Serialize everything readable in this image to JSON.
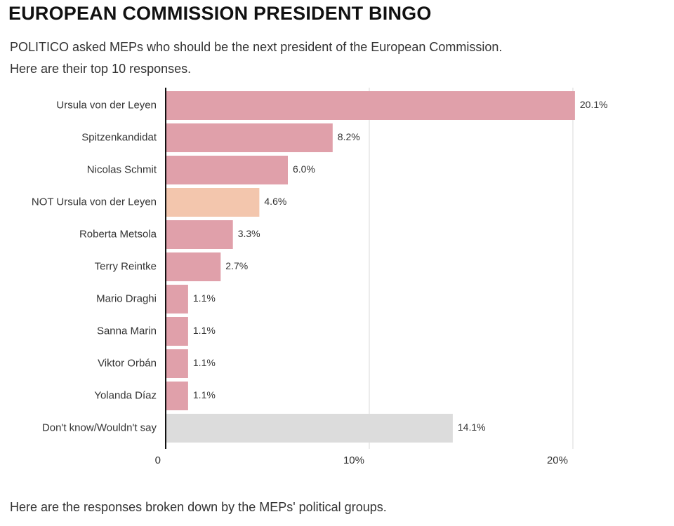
{
  "header": {
    "title": "EUROPEAN COMMISSION PRESIDENT BINGO",
    "subtitle_line1": "POLITICO asked MEPs who should be the next president of the European Commission.",
    "subtitle_line2": "Here are their top 10 responses."
  },
  "footer": {
    "text": "Here are the responses broken down by the MEPs' political groups."
  },
  "colors": {
    "pink": "#e0a0aa",
    "peach": "#f3c6ad",
    "grey": "#dcdcdc",
    "gridline": "#d9d9d9",
    "axis": "#111111"
  },
  "chart_data": {
    "type": "bar",
    "orientation": "horizontal",
    "title": "EUROPEAN COMMISSION PRESIDENT BINGO",
    "xlabel": "",
    "ylabel": "",
    "xlim": [
      0,
      20.5
    ],
    "grid": true,
    "xticks": [
      {
        "value": 0,
        "label": "0"
      },
      {
        "value": 10,
        "label": "10%"
      },
      {
        "value": 20,
        "label": "20%"
      }
    ],
    "categories": [
      "Ursula von der Leyen",
      "Spitzenkandidat",
      "Nicolas Schmit",
      "NOT Ursula von der Leyen",
      "Roberta Metsola",
      "Terry Reintke",
      "Mario Draghi",
      "Sanna Marin",
      "Viktor Orbán",
      "Yolanda Díaz",
      "Don't know/Wouldn't say"
    ],
    "values": [
      20.1,
      8.2,
      6.0,
      4.6,
      3.3,
      2.7,
      1.1,
      1.1,
      1.1,
      1.1,
      14.1
    ],
    "value_labels": [
      "20.1%",
      "8.2%",
      "6.0%",
      "4.6%",
      "3.3%",
      "2.7%",
      "1.1%",
      "1.1%",
      "1.1%",
      "1.1%",
      "14.1%"
    ],
    "bar_colors": [
      "pink",
      "pink",
      "pink",
      "peach",
      "pink",
      "pink",
      "pink",
      "pink",
      "pink",
      "pink",
      "grey"
    ]
  }
}
